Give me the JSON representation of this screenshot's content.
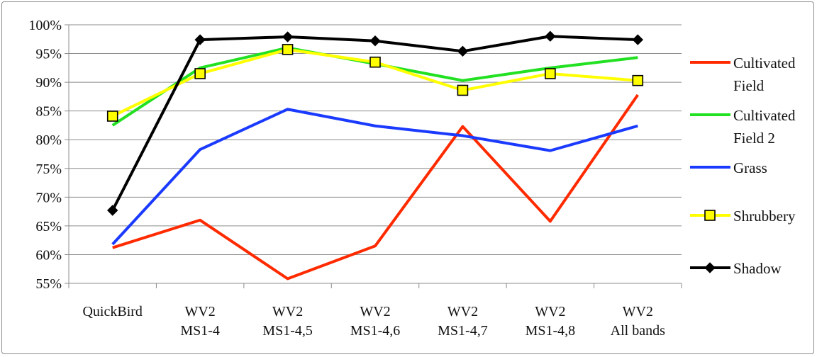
{
  "chart_data": {
    "type": "line",
    "categories": [
      [
        "QuickBird"
      ],
      [
        "WV2",
        "MS1-4"
      ],
      [
        "WV2",
        "MS1-4,5"
      ],
      [
        "WV2",
        "MS1-4,6"
      ],
      [
        "WV2",
        "MS1-4,7"
      ],
      [
        "WV2",
        "MS1-4,8"
      ],
      [
        "WV2",
        "All bands"
      ]
    ],
    "ylim": [
      55,
      100
    ],
    "yticks": [
      55,
      60,
      65,
      70,
      75,
      80,
      85,
      90,
      95,
      100
    ],
    "ytick_labels": [
      "55%",
      "60%",
      "65%",
      "70%",
      "75%",
      "80%",
      "85%",
      "90%",
      "95%",
      "100%"
    ],
    "grid": "horizontal",
    "legend_position": "right",
    "series": [
      {
        "name": [
          "Cultivated",
          "Field"
        ],
        "color": "#ff2a00",
        "marker": "none",
        "values": [
          61.2,
          66.0,
          55.8,
          61.5,
          82.3,
          65.8,
          87.8
        ]
      },
      {
        "name": [
          "Cultivated",
          "Field 2"
        ],
        "color": "#22e022",
        "marker": "none",
        "values": [
          82.5,
          92.5,
          96.0,
          93.2,
          90.3,
          92.5,
          94.3
        ]
      },
      {
        "name": [
          "Grass"
        ],
        "color": "#1a3aff",
        "marker": "none",
        "values": [
          61.8,
          78.3,
          85.3,
          82.4,
          80.7,
          78.1,
          82.4
        ]
      },
      {
        "name": [
          "Shrubbery"
        ],
        "color": "#ffff00",
        "marker": "square",
        "values": [
          84.1,
          91.5,
          95.7,
          93.5,
          88.6,
          91.5,
          90.3
        ]
      },
      {
        "name": [
          "Shadow"
        ],
        "color": "#000000",
        "marker": "diamond",
        "values": [
          67.7,
          97.4,
          97.9,
          97.2,
          95.4,
          98.0,
          97.4
        ]
      }
    ]
  }
}
